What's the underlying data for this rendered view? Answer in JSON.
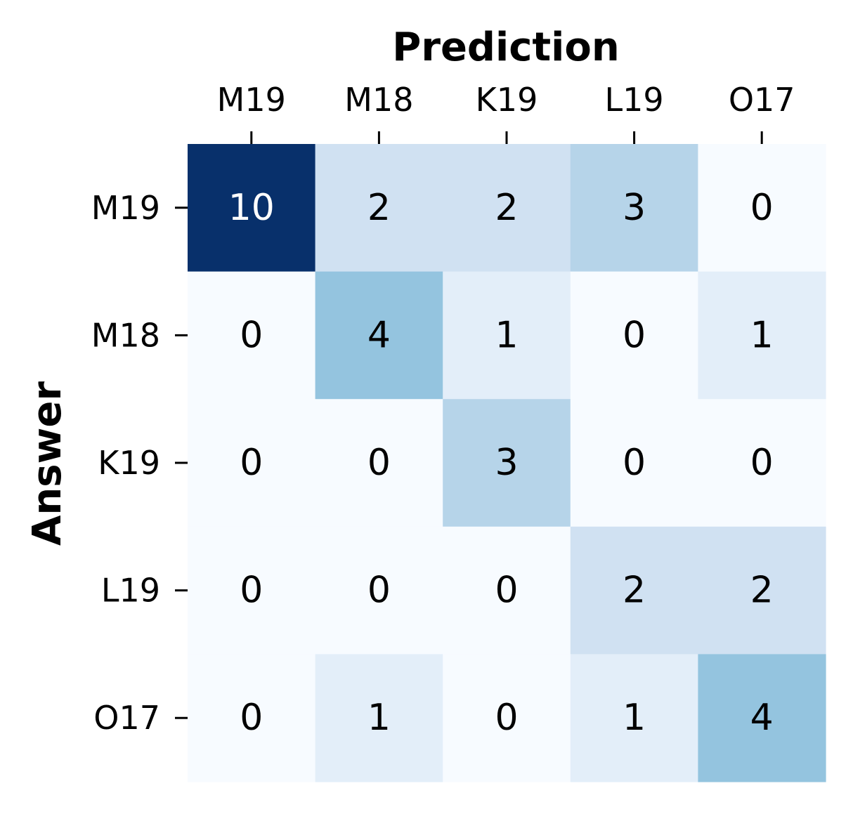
{
  "chart_data": {
    "type": "heatmap",
    "xlabel": "Prediction",
    "ylabel": "Answer",
    "x_categories": [
      "M19",
      "M18",
      "K19",
      "L19",
      "O17"
    ],
    "y_categories": [
      "M19",
      "M18",
      "K19",
      "L19",
      "O17"
    ],
    "values": [
      [
        10,
        2,
        2,
        3,
        0
      ],
      [
        0,
        4,
        1,
        0,
        1
      ],
      [
        0,
        0,
        3,
        0,
        0
      ],
      [
        0,
        0,
        0,
        2,
        2
      ],
      [
        0,
        1,
        0,
        1,
        4
      ]
    ],
    "color_range": [
      0,
      10
    ],
    "colormap": "Blues",
    "x_axis_position": "top",
    "colorbar": false,
    "grid": false
  }
}
